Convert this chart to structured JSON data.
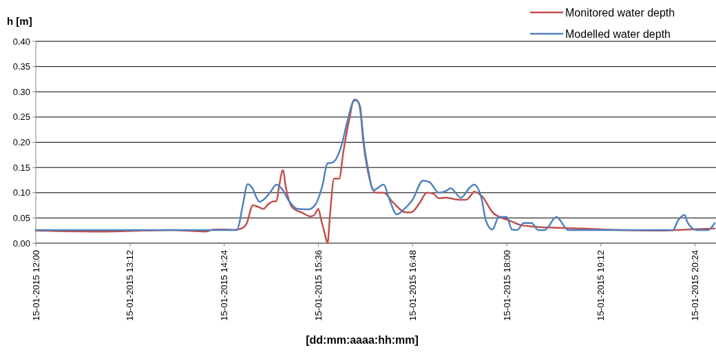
{
  "chart_data": {
    "type": "line",
    "ylabel": "h [m]",
    "xlabel": "[dd:mm:aaaa:hh:mm]",
    "legend": "top right",
    "grid": "y",
    "line_style": "solid",
    "marker": "none",
    "xlim": [
      "2015-01-15T12:00",
      "2015-01-15T20:40"
    ],
    "ylim": [
      0,
      0.4
    ],
    "xticks": [
      {
        "value": "2015-01-15T12:00",
        "label": "15-01-2015 12:00"
      },
      {
        "value": "2015-01-15T13:12",
        "label": "15-01-2015 13:12"
      },
      {
        "value": "2015-01-15T14:24",
        "label": "15-01-2015 14:24"
      },
      {
        "value": "2015-01-15T15:36",
        "label": "15-01-2015 15:36"
      },
      {
        "value": "2015-01-15T16:48",
        "label": "15-01-2015 16:48"
      },
      {
        "value": "2015-01-15T18:00",
        "label": "15-01-2015 18:00"
      },
      {
        "value": "2015-01-15T19:12",
        "label": "15-01-2015 19:12"
      },
      {
        "value": "2015-01-15T20:24",
        "label": "15-01-2015 20:24"
      }
    ],
    "yticks": [
      {
        "value": 0,
        "label": "0.00"
      },
      {
        "value": 0.05,
        "label": "0.05"
      },
      {
        "value": 0.1,
        "label": "0.10"
      },
      {
        "value": 0.15,
        "label": "0.15"
      },
      {
        "value": 0.2,
        "label": "0.20"
      },
      {
        "value": 0.25,
        "label": "0.25"
      },
      {
        "value": 0.3,
        "label": "0.30"
      },
      {
        "value": 0.35,
        "label": "0.35"
      },
      {
        "value": 0.4,
        "label": "0.40"
      }
    ],
    "series": [
      {
        "name": "Monitored water depth",
        "color": "#c0504d",
        "x": [
          "2015-01-15T12:00",
          "2015-01-15T12:51",
          "2015-01-15T13:44",
          "2015-01-15T14:10",
          "2015-01-15T14:16",
          "2015-01-15T14:26",
          "2015-01-15T14:31",
          "2015-01-15T14:38",
          "2015-01-15T14:41",
          "2015-01-15T14:46",
          "2015-01-15T14:50",
          "2015-01-15T14:54",
          "2015-01-15T14:58",
          "2015-01-15T15:02",
          "2015-01-15T15:04",
          "2015-01-15T15:06",
          "2015-01-15T15:09",
          "2015-01-15T15:11",
          "2015-01-15T15:16",
          "2015-01-15T15:24",
          "2015-01-15T15:30",
          "2015-01-15T15:33",
          "2015-01-15T15:36",
          "2015-01-15T15:38",
          "2015-01-15T15:41",
          "2015-01-15T15:43",
          "2015-01-15T15:45",
          "2015-01-15T15:48",
          "2015-01-15T15:52",
          "2015-01-15T15:55",
          "2015-01-15T16:00",
          "2015-01-15T16:03",
          "2015-01-15T16:05",
          "2015-01-15T16:08",
          "2015-01-15T16:10",
          "2015-01-15T16:14",
          "2015-01-15T16:20",
          "2015-01-15T16:26",
          "2015-01-15T16:33",
          "2015-01-15T16:43",
          "2015-01-15T16:47",
          "2015-01-15T16:53",
          "2015-01-15T16:59",
          "2015-01-15T17:04",
          "2015-01-15T17:08",
          "2015-01-15T17:13",
          "2015-01-15T17:24",
          "2015-01-15T17:29",
          "2015-01-15T17:33",
          "2015-01-15T17:35",
          "2015-01-15T17:41",
          "2015-01-15T17:50",
          "2015-01-15T18:02",
          "2015-01-15T18:12",
          "2015-01-15T18:33",
          "2015-01-15T18:59",
          "2015-01-15T19:26",
          "2015-01-15T19:57",
          "2015-01-15T20:18",
          "2015-01-15T20:39"
        ],
        "values": [
          0.025,
          0.023,
          0.026,
          0.023,
          0.027,
          0.027,
          0.026,
          0.03,
          0.038,
          0.075,
          0.072,
          0.068,
          0.078,
          0.083,
          0.083,
          0.113,
          0.145,
          0.113,
          0.071,
          0.06,
          0.053,
          0.056,
          0.068,
          0.048,
          0.018,
          0,
          0.059,
          0.128,
          0.128,
          0.179,
          0.25,
          0.283,
          0.283,
          0.27,
          0.209,
          0.141,
          0.1,
          0.1,
          0.081,
          0.061,
          0.061,
          0.078,
          0.1,
          0.098,
          0.089,
          0.09,
          0.086,
          0.086,
          0.096,
          0.102,
          0.093,
          0.059,
          0.045,
          0.035,
          0.031,
          0.029,
          0.026,
          0.025,
          0.027,
          0.029
        ]
      },
      {
        "name": "Modelled water depth",
        "color": "#4f81bd",
        "x": [
          "2015-01-15T12:00",
          "2015-01-15T14:31",
          "2015-01-15T14:34",
          "2015-01-15T14:38",
          "2015-01-15T14:42",
          "2015-01-15T14:45",
          "2015-01-15T14:51",
          "2015-01-15T14:54",
          "2015-01-15T14:59",
          "2015-01-15T15:04",
          "2015-01-15T15:08",
          "2015-01-15T15:13",
          "2015-01-15T15:20",
          "2015-01-15T15:28",
          "2015-01-15T15:33",
          "2015-01-15T15:39",
          "2015-01-15T15:43",
          "2015-01-15T15:47",
          "2015-01-15T15:53",
          "2015-01-15T15:58",
          "2015-01-15T16:02",
          "2015-01-15T16:04",
          "2015-01-15T16:07",
          "2015-01-15T16:09",
          "2015-01-15T16:11",
          "2015-01-15T16:14",
          "2015-01-15T16:18",
          "2015-01-15T16:26",
          "2015-01-15T16:30",
          "2015-01-15T16:36",
          "2015-01-15T16:41",
          "2015-01-15T16:48",
          "2015-01-15T16:56",
          "2015-01-15T17:01",
          "2015-01-15T17:08",
          "2015-01-15T17:14",
          "2015-01-15T17:17",
          "2015-01-15T17:25",
          "2015-01-15T17:32",
          "2015-01-15T17:35",
          "2015-01-15T17:41",
          "2015-01-15T17:44",
          "2015-01-15T17:49",
          "2015-01-15T17:54",
          "2015-01-15T18:00",
          "2015-01-15T18:04",
          "2015-01-15T18:08",
          "2015-01-15T18:13",
          "2015-01-15T18:19",
          "2015-01-15T18:24",
          "2015-01-15T18:29",
          "2015-01-15T18:38",
          "2015-01-15T18:47",
          "2015-01-15T20:07",
          "2015-01-15T20:11",
          "2015-01-15T20:16",
          "2015-01-15T20:18",
          "2015-01-15T20:25",
          "2015-01-15T20:34",
          "2015-01-15T20:39"
        ],
        "values": [
          0.026,
          0.026,
          0.027,
          0.072,
          0.117,
          0.111,
          0.082,
          0.086,
          0.1,
          0.116,
          0.108,
          0.086,
          0.068,
          0.067,
          0.074,
          0.113,
          0.158,
          0.16,
          0.188,
          0.239,
          0.277,
          0.285,
          0.277,
          0.243,
          0.195,
          0.147,
          0.105,
          0.116,
          0.089,
          0.057,
          0.066,
          0.086,
          0.124,
          0.121,
          0.1,
          0.104,
          0.109,
          0.09,
          0.111,
          0.116,
          0.086,
          0.045,
          0.027,
          0.052,
          0.052,
          0.027,
          0.026,
          0.04,
          0.04,
          0.026,
          0.026,
          0.052,
          0.026,
          0.026,
          0.045,
          0.056,
          0.042,
          0.026,
          0.026,
          0.04
        ]
      }
    ]
  }
}
